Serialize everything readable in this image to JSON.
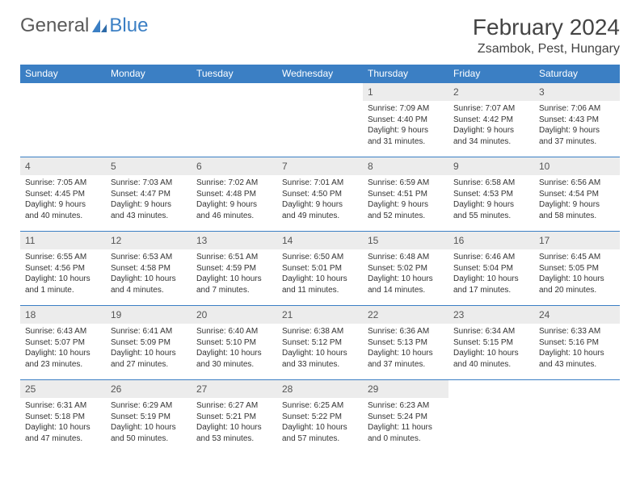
{
  "brand": {
    "part1": "General",
    "part2": "Blue"
  },
  "title": "February 2024",
  "location": "Zsambok, Pest, Hungary",
  "header_color": "#3b7fc4",
  "daynum_bg": "#ececec",
  "columns": [
    "Sunday",
    "Monday",
    "Tuesday",
    "Wednesday",
    "Thursday",
    "Friday",
    "Saturday"
  ],
  "weeks": [
    [
      null,
      null,
      null,
      null,
      {
        "n": "1",
        "sunrise": "7:09 AM",
        "sunset": "4:40 PM",
        "daylight": "9 hours and 31 minutes."
      },
      {
        "n": "2",
        "sunrise": "7:07 AM",
        "sunset": "4:42 PM",
        "daylight": "9 hours and 34 minutes."
      },
      {
        "n": "3",
        "sunrise": "7:06 AM",
        "sunset": "4:43 PM",
        "daylight": "9 hours and 37 minutes."
      }
    ],
    [
      {
        "n": "4",
        "sunrise": "7:05 AM",
        "sunset": "4:45 PM",
        "daylight": "9 hours and 40 minutes."
      },
      {
        "n": "5",
        "sunrise": "7:03 AM",
        "sunset": "4:47 PM",
        "daylight": "9 hours and 43 minutes."
      },
      {
        "n": "6",
        "sunrise": "7:02 AM",
        "sunset": "4:48 PM",
        "daylight": "9 hours and 46 minutes."
      },
      {
        "n": "7",
        "sunrise": "7:01 AM",
        "sunset": "4:50 PM",
        "daylight": "9 hours and 49 minutes."
      },
      {
        "n": "8",
        "sunrise": "6:59 AM",
        "sunset": "4:51 PM",
        "daylight": "9 hours and 52 minutes."
      },
      {
        "n": "9",
        "sunrise": "6:58 AM",
        "sunset": "4:53 PM",
        "daylight": "9 hours and 55 minutes."
      },
      {
        "n": "10",
        "sunrise": "6:56 AM",
        "sunset": "4:54 PM",
        "daylight": "9 hours and 58 minutes."
      }
    ],
    [
      {
        "n": "11",
        "sunrise": "6:55 AM",
        "sunset": "4:56 PM",
        "daylight": "10 hours and 1 minute."
      },
      {
        "n": "12",
        "sunrise": "6:53 AM",
        "sunset": "4:58 PM",
        "daylight": "10 hours and 4 minutes."
      },
      {
        "n": "13",
        "sunrise": "6:51 AM",
        "sunset": "4:59 PM",
        "daylight": "10 hours and 7 minutes."
      },
      {
        "n": "14",
        "sunrise": "6:50 AM",
        "sunset": "5:01 PM",
        "daylight": "10 hours and 11 minutes."
      },
      {
        "n": "15",
        "sunrise": "6:48 AM",
        "sunset": "5:02 PM",
        "daylight": "10 hours and 14 minutes."
      },
      {
        "n": "16",
        "sunrise": "6:46 AM",
        "sunset": "5:04 PM",
        "daylight": "10 hours and 17 minutes."
      },
      {
        "n": "17",
        "sunrise": "6:45 AM",
        "sunset": "5:05 PM",
        "daylight": "10 hours and 20 minutes."
      }
    ],
    [
      {
        "n": "18",
        "sunrise": "6:43 AM",
        "sunset": "5:07 PM",
        "daylight": "10 hours and 23 minutes."
      },
      {
        "n": "19",
        "sunrise": "6:41 AM",
        "sunset": "5:09 PM",
        "daylight": "10 hours and 27 minutes."
      },
      {
        "n": "20",
        "sunrise": "6:40 AM",
        "sunset": "5:10 PM",
        "daylight": "10 hours and 30 minutes."
      },
      {
        "n": "21",
        "sunrise": "6:38 AM",
        "sunset": "5:12 PM",
        "daylight": "10 hours and 33 minutes."
      },
      {
        "n": "22",
        "sunrise": "6:36 AM",
        "sunset": "5:13 PM",
        "daylight": "10 hours and 37 minutes."
      },
      {
        "n": "23",
        "sunrise": "6:34 AM",
        "sunset": "5:15 PM",
        "daylight": "10 hours and 40 minutes."
      },
      {
        "n": "24",
        "sunrise": "6:33 AM",
        "sunset": "5:16 PM",
        "daylight": "10 hours and 43 minutes."
      }
    ],
    [
      {
        "n": "25",
        "sunrise": "6:31 AM",
        "sunset": "5:18 PM",
        "daylight": "10 hours and 47 minutes."
      },
      {
        "n": "26",
        "sunrise": "6:29 AM",
        "sunset": "5:19 PM",
        "daylight": "10 hours and 50 minutes."
      },
      {
        "n": "27",
        "sunrise": "6:27 AM",
        "sunset": "5:21 PM",
        "daylight": "10 hours and 53 minutes."
      },
      {
        "n": "28",
        "sunrise": "6:25 AM",
        "sunset": "5:22 PM",
        "daylight": "10 hours and 57 minutes."
      },
      {
        "n": "29",
        "sunrise": "6:23 AM",
        "sunset": "5:24 PM",
        "daylight": "11 hours and 0 minutes."
      },
      null,
      null
    ]
  ],
  "labels": {
    "sunrise": "Sunrise:",
    "sunset": "Sunset:",
    "daylight": "Daylight:"
  }
}
